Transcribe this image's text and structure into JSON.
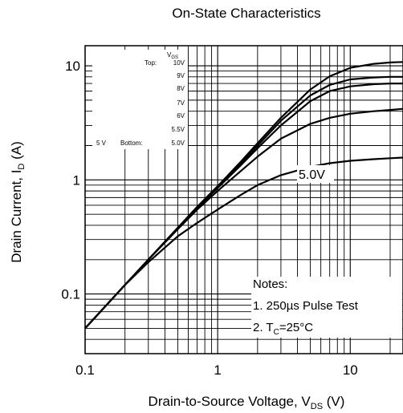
{
  "chart_data": {
    "type": "line",
    "title": "On-State Characteristics",
    "xlabel": {
      "main": "Drain-to-Source Voltage, V",
      "sub": "DS",
      "unit": " (V)"
    },
    "ylabel": {
      "main": "Drain Current, I",
      "sub": "D",
      "unit": " (A)"
    },
    "x_scale": "log",
    "y_scale": "log",
    "xlim": [
      0.1,
      25
    ],
    "ylim": [
      0.03,
      15
    ],
    "grid": true,
    "x_ticks": [
      {
        "value": 0.1,
        "label": "0.1"
      },
      {
        "value": 1,
        "label": "1"
      },
      {
        "value": 10,
        "label": "10"
      }
    ],
    "y_ticks": [
      {
        "value": 0.1,
        "label": "0.1"
      },
      {
        "value": 1,
        "label": "1"
      },
      {
        "value": 10,
        "label": "10"
      }
    ],
    "legend": {
      "placement": "top-left",
      "header": {
        "main": "V",
        "sub": "GS"
      },
      "top_label": "Top:",
      "bottom_label": "Bottom:",
      "side_label": "5 V",
      "values": [
        "10V",
        "9V",
        "8V",
        "7V",
        "6V",
        "5.5V",
        "5.0V"
      ]
    },
    "series": [
      {
        "x": [
          0.1,
          0.2,
          0.3,
          0.5,
          0.7,
          1,
          1.5,
          2,
          3,
          5,
          7,
          10,
          15,
          20,
          25
        ],
        "y": [
          0.05,
          0.12,
          0.2,
          0.38,
          0.58,
          0.88,
          1.45,
          2.1,
          3.5,
          6.2,
          8.1,
          9.6,
          10.4,
          10.7,
          10.8
        ]
      },
      {
        "x": [
          0.1,
          0.2,
          0.3,
          0.5,
          0.7,
          1,
          1.5,
          2,
          3,
          5,
          7,
          10,
          15,
          20,
          25
        ],
        "y": [
          0.05,
          0.12,
          0.2,
          0.38,
          0.58,
          0.87,
          1.4,
          2.0,
          3.3,
          5.5,
          6.8,
          7.6,
          7.9,
          8.0,
          8.0
        ]
      },
      {
        "x": [
          0.1,
          0.2,
          0.3,
          0.5,
          0.7,
          1,
          1.5,
          2,
          3,
          5,
          7,
          10,
          15,
          20,
          25
        ],
        "y": [
          0.05,
          0.12,
          0.2,
          0.38,
          0.57,
          0.85,
          1.35,
          1.9,
          3.0,
          4.9,
          6.0,
          6.6,
          6.9,
          7.0,
          7.0
        ]
      },
      {
        "x": [
          0.1,
          0.2,
          0.3,
          0.5,
          0.7,
          1,
          1.5,
          2,
          3,
          5,
          7,
          10,
          15,
          20,
          25
        ],
        "y": [
          0.05,
          0.12,
          0.2,
          0.37,
          0.55,
          0.8,
          1.2,
          1.6,
          2.3,
          3.1,
          3.5,
          3.8,
          4.0,
          4.1,
          4.2
        ]
      },
      {
        "x": [
          0.1,
          0.2,
          0.3,
          0.5,
          0.7,
          1,
          1.5,
          2,
          3,
          5,
          7,
          10,
          15,
          20,
          25
        ],
        "y": [
          0.05,
          0.12,
          0.19,
          0.32,
          0.42,
          0.55,
          0.74,
          0.9,
          1.1,
          1.3,
          1.4,
          1.47,
          1.52,
          1.55,
          1.57
        ]
      }
    ],
    "annotations": [
      {
        "text": "5.0V",
        "x": 5.5,
        "y": 1.15
      }
    ],
    "notes": {
      "title": "Notes:",
      "line1": "1. 250µs Pulse Test",
      "line2": {
        "prefix": "2. T",
        "sub": "C",
        "suffix": "=25°C"
      }
    }
  }
}
